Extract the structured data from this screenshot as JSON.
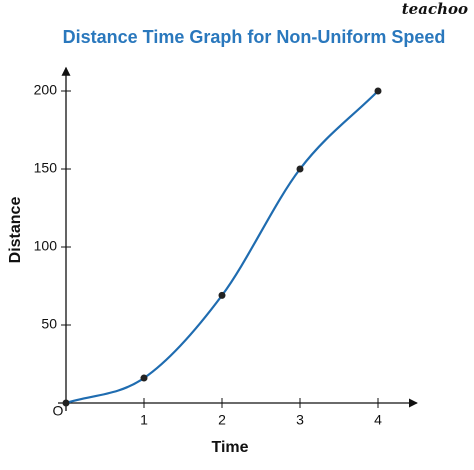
{
  "brand": "teachoo",
  "chart_data": {
    "type": "line",
    "title": "Distance Time Graph for Non-Uniform Speed",
    "x_label": "Time",
    "y_label": "Distance",
    "origin_label": "O",
    "x": [
      0,
      1,
      2,
      3,
      4
    ],
    "values": [
      0,
      16,
      69,
      150,
      200
    ],
    "color": "#1f6cb0",
    "xlim": [
      0,
      4.5
    ],
    "ylim": [
      0,
      215
    ],
    "xticks": [
      1,
      2,
      3,
      4
    ],
    "yticks": [
      50,
      100,
      150,
      200
    ],
    "smooth": true,
    "markers": true,
    "grid": false
  }
}
